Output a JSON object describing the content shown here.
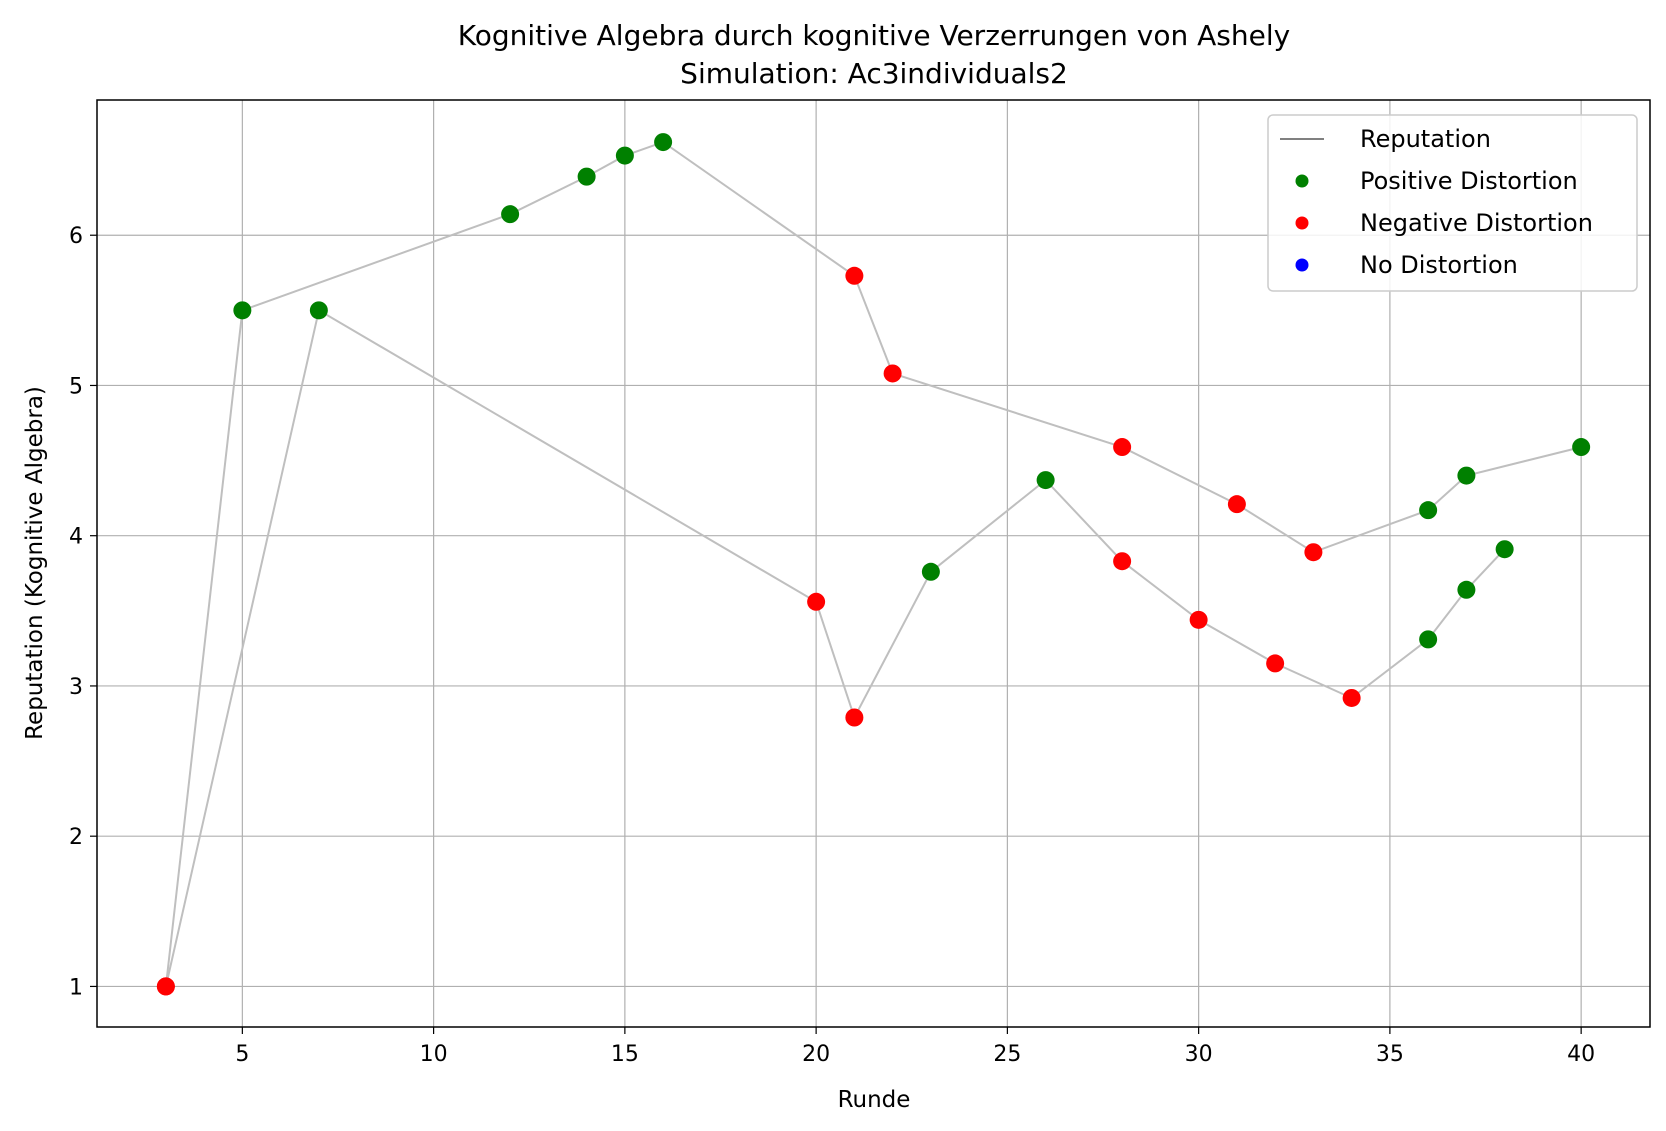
{
  "chart_data": {
    "type": "scatter",
    "title": "Kognitive Algebra durch kognitive Verzerrungen von Ashely",
    "subtitle": "Simulation: Ac3individuals2",
    "xlabel": "Runde",
    "ylabel": "Reputation (Kognitive Algebra)",
    "xlim": [
      1.2,
      41.8
    ],
    "ylim": [
      0.73,
      6.9
    ],
    "xticks": [
      "5",
      "10",
      "15",
      "20",
      "25",
      "30",
      "35",
      "40"
    ],
    "yticks": [
      "1",
      "2",
      "3",
      "4",
      "5",
      "6"
    ],
    "grid": true,
    "legend_position": "top-right",
    "legend": [
      {
        "label": "Reputation",
        "kind": "line",
        "color": "#808080"
      },
      {
        "label": "Positive Distortion",
        "kind": "marker",
        "color": "#008000"
      },
      {
        "label": "Negative Distortion",
        "kind": "marker",
        "color": "#ff0000"
      },
      {
        "label": "No Distortion",
        "kind": "marker",
        "color": "#0000ff"
      }
    ],
    "line_color": "#bfbfbf",
    "series": [
      {
        "points": [
          {
            "x": 3,
            "y": 1.0,
            "distortion": "negative"
          },
          {
            "x": 5,
            "y": 5.5,
            "distortion": "positive"
          },
          {
            "x": 12,
            "y": 6.14,
            "distortion": "positive"
          },
          {
            "x": 14,
            "y": 6.39,
            "distortion": "positive"
          },
          {
            "x": 15,
            "y": 6.53,
            "distortion": "positive"
          },
          {
            "x": 16,
            "y": 6.62,
            "distortion": "positive"
          },
          {
            "x": 21,
            "y": 5.73,
            "distortion": "negative"
          },
          {
            "x": 22,
            "y": 5.08,
            "distortion": "negative"
          },
          {
            "x": 28,
            "y": 4.59,
            "distortion": "negative"
          },
          {
            "x": 31,
            "y": 4.21,
            "distortion": "negative"
          },
          {
            "x": 33,
            "y": 3.89,
            "distortion": "negative"
          },
          {
            "x": 36,
            "y": 4.17,
            "distortion": "positive"
          },
          {
            "x": 37,
            "y": 4.4,
            "distortion": "positive"
          },
          {
            "x": 40,
            "y": 4.59,
            "distortion": "positive"
          }
        ]
      },
      {
        "points": [
          {
            "x": 3,
            "y": 1.0,
            "distortion": "negative"
          },
          {
            "x": 7,
            "y": 5.5,
            "distortion": "positive"
          },
          {
            "x": 20,
            "y": 3.56,
            "distortion": "negative"
          },
          {
            "x": 21,
            "y": 2.79,
            "distortion": "negative"
          },
          {
            "x": 23,
            "y": 3.76,
            "distortion": "positive"
          },
          {
            "x": 26,
            "y": 4.37,
            "distortion": "positive"
          },
          {
            "x": 28,
            "y": 3.83,
            "distortion": "negative"
          },
          {
            "x": 30,
            "y": 3.44,
            "distortion": "negative"
          },
          {
            "x": 32,
            "y": 3.15,
            "distortion": "negative"
          },
          {
            "x": 34,
            "y": 2.92,
            "distortion": "negative"
          },
          {
            "x": 36,
            "y": 3.31,
            "distortion": "positive"
          },
          {
            "x": 37,
            "y": 3.64,
            "distortion": "positive"
          },
          {
            "x": 38,
            "y": 3.91,
            "distortion": "positive"
          }
        ]
      }
    ],
    "colors": {
      "positive": "#008000",
      "negative": "#ff0000",
      "none": "#0000ff",
      "grid": "#b0b0b0",
      "frame": "#000000"
    }
  }
}
